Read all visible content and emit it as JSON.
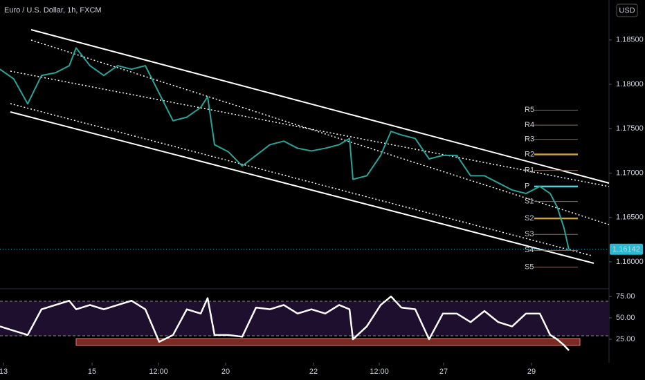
{
  "chart_data": [
    {
      "type": "line",
      "title": "Euro / U.S. Dollar, 1h, FXCM",
      "currency": "USD",
      "x": [
        0,
        5,
        10,
        15,
        20,
        25,
        27.5,
        32.5,
        37.5,
        42.5,
        47.5,
        52.5,
        57.5,
        62.5,
        67.5,
        72.5,
        75,
        77.5,
        82.5,
        87.5,
        92.5,
        97.5,
        102.5,
        107.5,
        112.5,
        117.5,
        122.5,
        126.25,
        127.5,
        132.5,
        137.5,
        141.25,
        145,
        150,
        155,
        160,
        165,
        170,
        175,
        180,
        185,
        190,
        195,
        198.75,
        201.25,
        203.75,
        205.5
      ],
      "series": [
        {
          "color": "#26a69a",
          "values": [
            1.1817,
            1.1806,
            1.1778,
            1.181,
            1.1813,
            1.1821,
            1.1841,
            1.1821,
            1.181,
            1.1821,
            1.1817,
            1.1821,
            1.179,
            1.1759,
            1.1763,
            1.1774,
            1.1786,
            1.1732,
            1.1724,
            1.1708,
            1.172,
            1.1732,
            1.1736,
            1.1728,
            1.1725,
            1.1728,
            1.1732,
            1.1739,
            1.1693,
            1.1697,
            1.172,
            1.1747,
            1.1743,
            1.1739,
            1.1716,
            1.172,
            1.172,
            1.1697,
            1.1697,
            1.1689,
            1.1681,
            1.1677,
            1.1685,
            1.1677,
            1.1662,
            1.1638,
            1.1614
          ]
        }
      ],
      "xlim": [
        0,
        220
      ],
      "ylim": [
        1.1572,
        1.1895
      ],
      "xticks": [
        {
          "value": 1.25,
          "label": "13"
        },
        {
          "value": 33.25,
          "label": "15"
        },
        {
          "value": 57.25,
          "label": "12:00"
        },
        {
          "value": 81.5,
          "label": "20"
        },
        {
          "value": 113.25,
          "label": "22"
        },
        {
          "value": 137,
          "label": "12:00"
        },
        {
          "value": 160.25,
          "label": "27"
        },
        {
          "value": 192,
          "label": "29"
        }
      ],
      "yticks": [
        {
          "value": 1.185,
          "label": "1.18500"
        },
        {
          "value": 1.18,
          "label": "1.18000"
        },
        {
          "value": 1.175,
          "label": "1.17500"
        },
        {
          "value": 1.17,
          "label": "1.17000"
        },
        {
          "value": 1.165,
          "label": "1.16500"
        },
        {
          "value": 1.16,
          "label": "1.16000"
        }
      ],
      "current_price": {
        "value": 1.16142,
        "label": "1.16142"
      },
      "pivots": [
        {
          "label": "R5",
          "value": 1.1771,
          "color": "#8d6e63"
        },
        {
          "label": "R4",
          "value": 1.1754,
          "color": "#8d6e63"
        },
        {
          "label": "R3",
          "value": 1.1738,
          "color": "#8d6e63"
        },
        {
          "label": "R2",
          "value": 1.1721,
          "color": "#c9a23a"
        },
        {
          "label": "R1",
          "value": 1.1703,
          "color": "#8d6e63"
        },
        {
          "label": "P",
          "value": 1.1685,
          "color": "#4dd0e1"
        },
        {
          "label": "S1",
          "value": 1.1668,
          "color": "#8d6e63"
        },
        {
          "label": "S2",
          "value": 1.1649,
          "color": "#c9a23a"
        },
        {
          "label": "S3",
          "value": 1.1631,
          "color": "#8d6e63"
        },
        {
          "label": "S4",
          "value": 1.1613,
          "color": "#8d6e63"
        },
        {
          "label": "S5",
          "value": 1.1594,
          "color": "#8d6e63"
        }
      ]
    },
    {
      "type": "line",
      "x": [
        0,
        5,
        10,
        15,
        20,
        25,
        27.5,
        32.5,
        37.5,
        42.5,
        47.5,
        52.5,
        57.5,
        62.5,
        67.5,
        72.5,
        75,
        77.5,
        82.5,
        87.5,
        92.5,
        97.5,
        102.5,
        107.5,
        112.5,
        117.5,
        122.5,
        126.25,
        127.5,
        132.5,
        137.5,
        141.25,
        145,
        150,
        155,
        160,
        165,
        170,
        175,
        180,
        185,
        190,
        195,
        198.75,
        201.25,
        203.75,
        205.5
      ],
      "series": [
        {
          "color": "#ffffff",
          "values": [
            40,
            35,
            30,
            60,
            65,
            70,
            60,
            65,
            60,
            65,
            70,
            60,
            22,
            30,
            60,
            55,
            73,
            30,
            30,
            28,
            62,
            60,
            65,
            55,
            60,
            55,
            65,
            60,
            25,
            40,
            65,
            75,
            62,
            60,
            25,
            55,
            55,
            45,
            58,
            45,
            40,
            55,
            55,
            30,
            25,
            18,
            12
          ]
        }
      ],
      "xlim": [
        0,
        220
      ],
      "ylim": [
        -2.4,
        82.3
      ],
      "yticks": [
        {
          "value": 75,
          "label": "75.00"
        },
        {
          "value": 50,
          "label": "50.00"
        },
        {
          "value": 25,
          "label": "25.00"
        }
      ]
    }
  ]
}
